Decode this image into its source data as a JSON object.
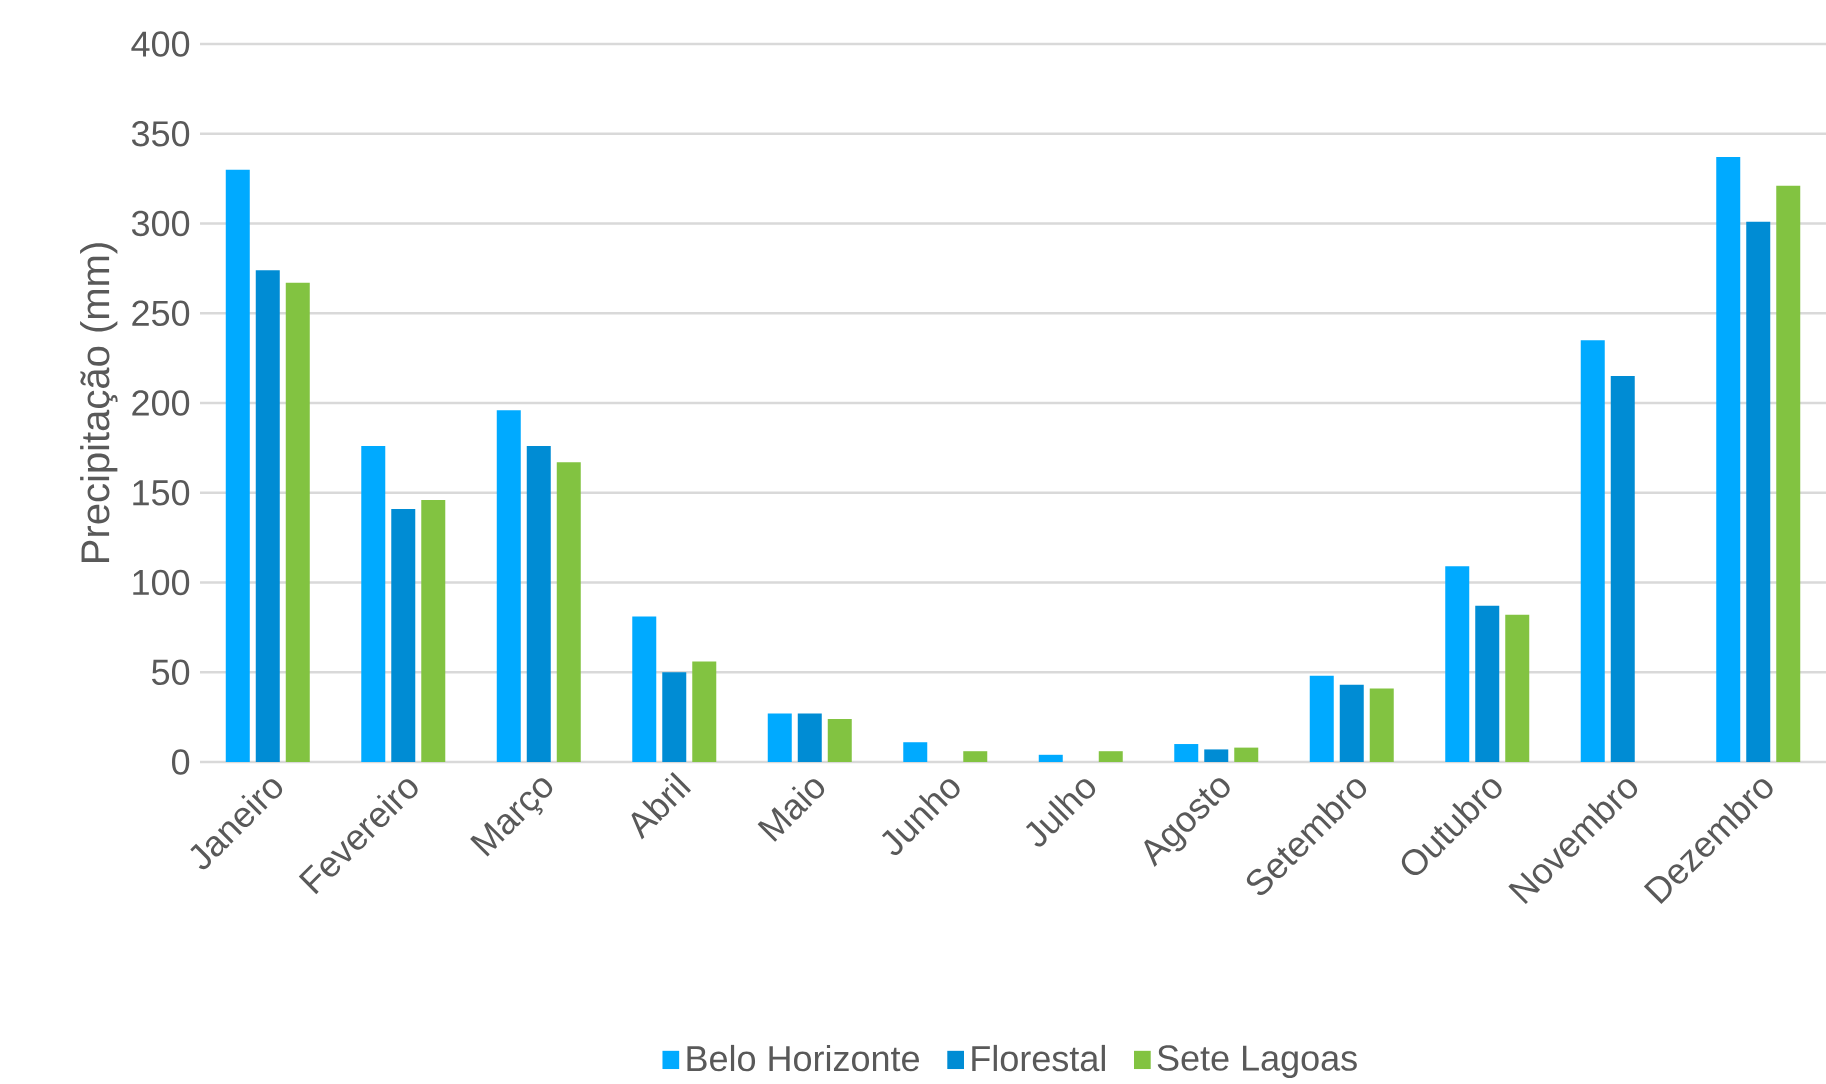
{
  "chart_data": {
    "type": "bar",
    "ylabel": "Precipitação (mm)",
    "categories": [
      "Janeiro",
      "Fevereiro",
      "Março",
      "Abril",
      "Maio",
      "Junho",
      "Julho",
      "Agosto",
      "Setembro",
      "Outubro",
      "Novembro",
      "Dezembro"
    ],
    "series": [
      {
        "name": "Belo Horizonte",
        "color": "#00aaff",
        "values": [
          330,
          176,
          196,
          81,
          27,
          11,
          4,
          10,
          48,
          109,
          235,
          337
        ]
      },
      {
        "name": "Florestal",
        "color": "#008cd4",
        "values": [
          274,
          141,
          176,
          50,
          27,
          null,
          null,
          7,
          43,
          87,
          215,
          301
        ]
      },
      {
        "name": "Sete Lagoas",
        "color": "#82c341",
        "values": [
          267,
          146,
          167,
          56,
          24,
          6,
          6,
          8,
          41,
          82,
          null,
          321
        ]
      }
    ],
    "ylim": [
      0,
      400
    ],
    "yticks": [
      0,
      50,
      100,
      150,
      200,
      250,
      300,
      350,
      400
    ],
    "grid": "y",
    "legend": "bottom"
  }
}
